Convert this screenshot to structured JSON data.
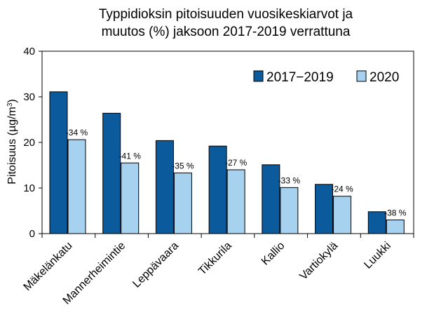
{
  "chart_data": {
    "type": "bar",
    "title_line1": "Typpidioksin  pitoisuuden  vuosikeskiarvot ja",
    "title_line2": "muutos  (%) jaksoon 2017-2019 verrattuna",
    "ylabel_main": "Pitoisuus (µg/m",
    "ylabel_sup": "3",
    "ylabel_end": ")",
    "xlabel": "",
    "ylim": [
      0,
      40
    ],
    "yticks": [
      "0",
      "10",
      "20",
      "30",
      "40"
    ],
    "ytick_values": [
      0,
      10,
      20,
      30,
      40
    ],
    "categories": [
      "Mäkelänkatu",
      "Mannerheimintie",
      "Leppävaara",
      "Tikkurila",
      "Kallio",
      "Vartiokylä",
      "Luukki"
    ],
    "series": [
      {
        "name": "2017−2019",
        "color": "#0a5a9c",
        "values": [
          31.1,
          26.4,
          20.4,
          19.2,
          15.1,
          10.8,
          4.8
        ]
      },
      {
        "name": "2020",
        "color": "#a6d2f0",
        "values": [
          20.6,
          15.5,
          13.3,
          14.0,
          10.1,
          8.2,
          3.0
        ]
      }
    ],
    "change_labels": [
      "-34 %",
      "-41 %",
      "-35 %",
      "-27 %",
      "-33 %",
      "-24 %",
      "-38 %"
    ],
    "grid": false,
    "legend_position": "top-right"
  }
}
